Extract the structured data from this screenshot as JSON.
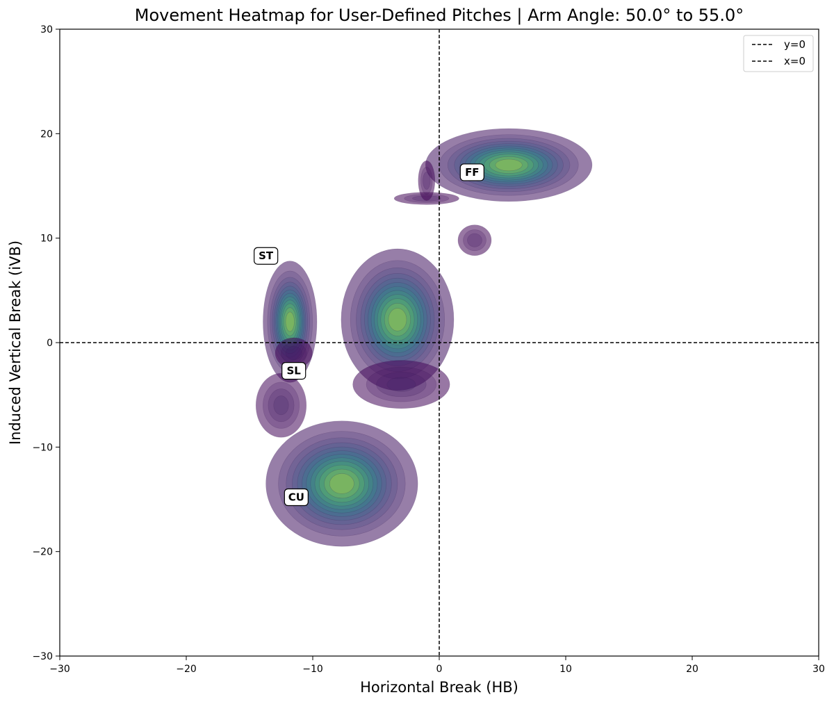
{
  "chart_data": {
    "type": "heatmap",
    "subtype": "kde-density-contour",
    "title": "Movement Heatmap for User-Defined Pitches | Arm Angle: 50.0° to 55.0°",
    "xlabel": "Horizontal Break (HB)",
    "ylabel": "Induced Vertical Break (iVB)",
    "xlim": [
      -30,
      30
    ],
    "ylim": [
      -30,
      30
    ],
    "xticks": [
      -30,
      -20,
      -10,
      0,
      10,
      20,
      30
    ],
    "yticks": [
      -30,
      -20,
      -10,
      0,
      10,
      20,
      30
    ],
    "xtick_labels": [
      "−30",
      "−20",
      "−10",
      "0",
      "10",
      "20",
      "30"
    ],
    "ytick_labels": [
      "−30",
      "−20",
      "−10",
      "0",
      "10",
      "20",
      "30"
    ],
    "grid": false,
    "colormap": [
      "#440154",
      "#3b528b",
      "#21918c",
      "#5ec962",
      "#fde725"
    ],
    "reference_lines": [
      {
        "label": "y=0",
        "axis": "y",
        "value": 0,
        "style": "dashed",
        "color": "#000000"
      },
      {
        "label": "x=0",
        "axis": "x",
        "value": 0,
        "style": "dashed",
        "color": "#000000"
      }
    ],
    "legend": {
      "placement": "top-right",
      "entries": [
        "y=0",
        "x=0"
      ]
    },
    "series": [
      {
        "name": "FF",
        "label_at": [
          2.6,
          16.3
        ],
        "peak": [
          5.8,
          17.0
        ],
        "extent_x": [
          -4.0,
          12.0
        ],
        "extent_y": [
          8.5,
          21.0
        ],
        "blobs": [
          {
            "cx": 5.5,
            "cy": 17.0,
            "rx": 6.8,
            "ry": 3.6,
            "w": 1.0
          },
          {
            "cx": -1.0,
            "cy": 13.8,
            "rx": 3.5,
            "ry": 0.8,
            "w": 0.3
          },
          {
            "cx": -1.0,
            "cy": 15.5,
            "rx": 0.9,
            "ry": 2.6,
            "w": 0.3
          },
          {
            "cx": 2.8,
            "cy": 9.8,
            "rx": 1.8,
            "ry": 2.0,
            "w": 0.3
          }
        ]
      },
      {
        "name": "SL",
        "label_at": [
          -11.5,
          -2.7
        ],
        "peak": [
          -3.3,
          2.2
        ],
        "extent_x": [
          -9.5,
          2.0
        ],
        "extent_y": [
          -8.0,
          11.0
        ],
        "blobs": [
          {
            "cx": -3.3,
            "cy": 2.2,
            "rx": 4.6,
            "ry": 7.0,
            "w": 1.0
          },
          {
            "cx": -3.0,
            "cy": -4.0,
            "rx": 5.0,
            "ry": 3.0,
            "w": 0.35
          }
        ]
      },
      {
        "name": "ST",
        "label_at": [
          -13.7,
          8.3
        ],
        "peak": [
          -11.8,
          2.0
        ],
        "extent_x": [
          -15.0,
          -9.0
        ],
        "extent_y": [
          -6.0,
          9.0
        ],
        "blobs": [
          {
            "cx": -11.8,
            "cy": 2.0,
            "rx": 2.2,
            "ry": 6.0,
            "w": 1.0
          },
          {
            "cx": -11.5,
            "cy": -1.0,
            "rx": 2.0,
            "ry": 2.0,
            "w": 0.3
          }
        ]
      },
      {
        "name": "CU",
        "label_at": [
          -11.3,
          -14.8
        ],
        "peak": [
          -7.7,
          -13.4
        ],
        "extent_x": [
          -15.5,
          0.0
        ],
        "extent_y": [
          -22.0,
          -1.0
        ],
        "blobs": [
          {
            "cx": -7.7,
            "cy": -13.5,
            "rx": 6.2,
            "ry": 6.2,
            "w": 1.0
          },
          {
            "cx": -12.5,
            "cy": -6.0,
            "rx": 2.6,
            "ry": 4.0,
            "w": 0.35
          }
        ]
      }
    ]
  }
}
